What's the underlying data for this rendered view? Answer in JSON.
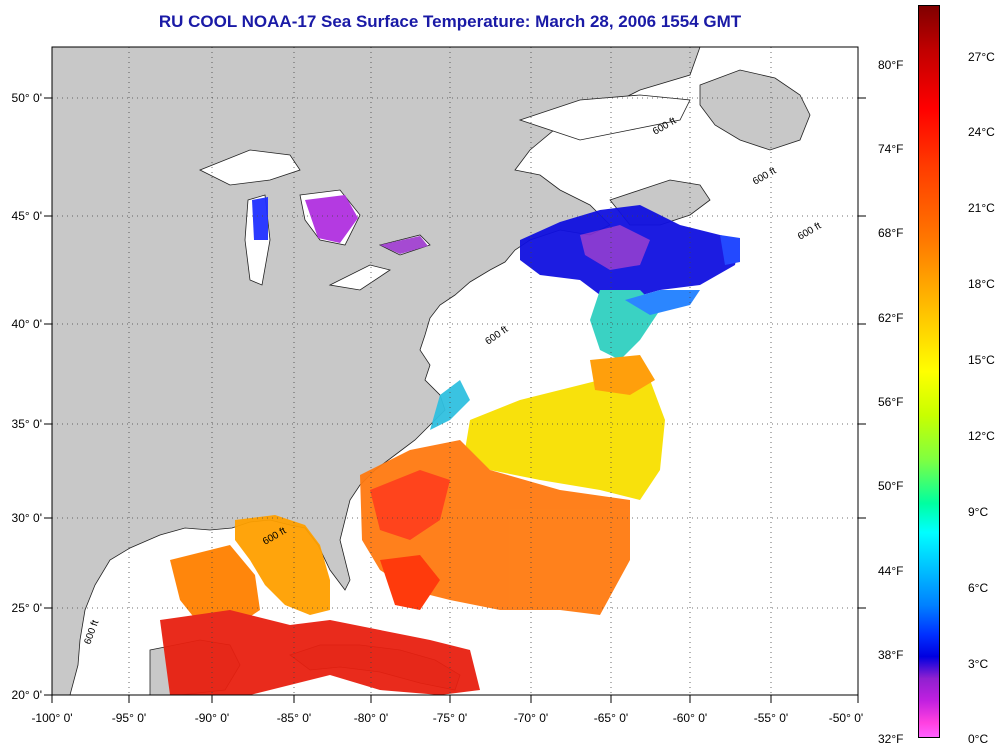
{
  "title": "RU COOL  NOAA-17  Sea Surface Temperature:  March 28, 2006 1554 GMT",
  "map": {
    "lon_ticks": [
      "-100° 0'",
      "-95° 0'",
      "-90° 0'",
      "-85° 0'",
      "-80° 0'",
      "-75° 0'",
      "-70° 0'",
      "-65° 0'",
      "-60° 0'",
      "-55° 0'",
      "-50° 0'"
    ],
    "lat_ticks": [
      "50° 0'",
      "45° 0'",
      "40° 0'",
      "35° 0'",
      "30° 0'",
      "25° 0'",
      "20° 0'"
    ],
    "isobath_label": "600 ft",
    "land_color": "#c8c8c8",
    "grid": "dotted"
  },
  "colorbar": {
    "fahrenheit": [
      "80°F",
      "74°F",
      "68°F",
      "62°F",
      "56°F",
      "50°F",
      "44°F",
      "38°F",
      "32°F"
    ],
    "celsius": [
      "27°C",
      "24°C",
      "21°C",
      "18°C",
      "15°C",
      "12°C",
      "9°C",
      "6°C",
      "3°C",
      "0°C"
    ]
  }
}
